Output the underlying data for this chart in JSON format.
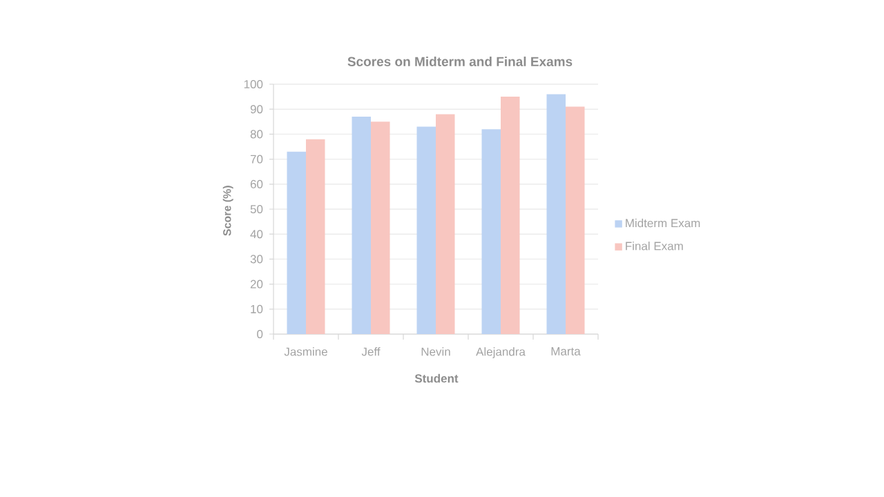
{
  "chart_data": {
    "type": "bar",
    "title": "Scores on Midterm and Final Exams",
    "xlabel": "Student",
    "ylabel": "Score (%)",
    "categories": [
      "Jasmine",
      "Jeff",
      "Nevin",
      "Alejandra",
      "Marta"
    ],
    "series": [
      {
        "name": "Midterm Exam",
        "color": "#bcd3f3",
        "values": [
          73,
          87,
          83,
          82,
          96
        ]
      },
      {
        "name": "Final Exam",
        "color": "#f8c6c0",
        "values": [
          78,
          85,
          88,
          95,
          91
        ]
      }
    ],
    "ylim": [
      0,
      100
    ],
    "yticks": [
      0,
      10,
      20,
      30,
      40,
      50,
      60,
      70,
      80,
      90,
      100
    ],
    "grid": "y",
    "legend": "right"
  }
}
